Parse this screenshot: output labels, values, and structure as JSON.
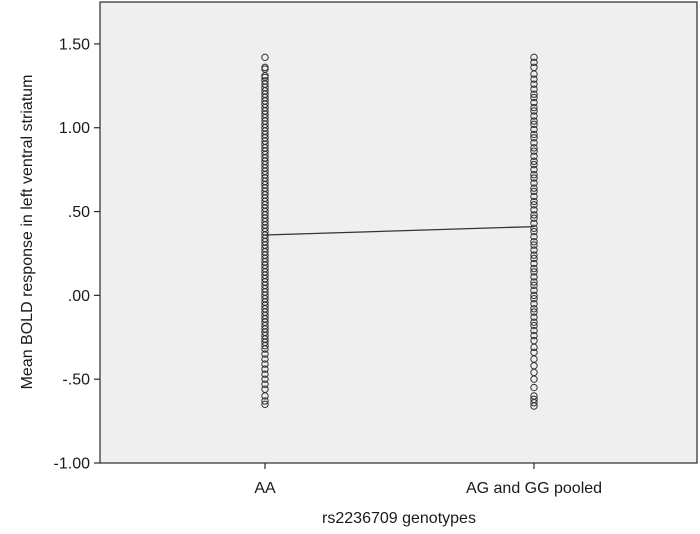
{
  "chart_data": {
    "type": "scatter",
    "title": "",
    "xlabel": "rs2236709 genotypes",
    "ylabel": "Mean BOLD response in left ventral striatum",
    "categories": [
      "AA",
      "AG and GG pooled"
    ],
    "ylim": [
      -1.0,
      1.75
    ],
    "yticks": [
      {
        "value": 1.5,
        "label": "1.50"
      },
      {
        "value": 1.0,
        "label": "1.00"
      },
      {
        "value": 0.5,
        "label": ".50"
      },
      {
        "value": 0.0,
        "label": ".00"
      },
      {
        "value": -0.5,
        "label": "-.50"
      },
      {
        "value": -1.0,
        "label": "-1.00"
      }
    ],
    "grid": false,
    "plot_background": "#efefef",
    "point_color": "#333333",
    "line_color": "#333333",
    "series": [
      {
        "category": "AA",
        "values": [
          1.42,
          1.36,
          1.35,
          1.31,
          1.3,
          1.28,
          1.26,
          1.24,
          1.22,
          1.2,
          1.18,
          1.16,
          1.14,
          1.12,
          1.1,
          1.08,
          1.06,
          1.04,
          1.02,
          1.0,
          0.98,
          0.96,
          0.94,
          0.92,
          0.9,
          0.88,
          0.86,
          0.84,
          0.82,
          0.8,
          0.78,
          0.76,
          0.74,
          0.72,
          0.7,
          0.68,
          0.66,
          0.64,
          0.62,
          0.6,
          0.58,
          0.56,
          0.54,
          0.52,
          0.5,
          0.48,
          0.46,
          0.44,
          0.42,
          0.4,
          0.38,
          0.36,
          0.34,
          0.32,
          0.3,
          0.28,
          0.26,
          0.24,
          0.22,
          0.2,
          0.18,
          0.16,
          0.14,
          0.12,
          0.1,
          0.08,
          0.06,
          0.04,
          0.02,
          0.0,
          -0.02,
          -0.04,
          -0.06,
          -0.08,
          -0.1,
          -0.12,
          -0.14,
          -0.16,
          -0.18,
          -0.2,
          -0.22,
          -0.24,
          -0.26,
          -0.28,
          -0.3,
          -0.32,
          -0.35,
          -0.38,
          -0.41,
          -0.44,
          -0.47,
          -0.5,
          -0.53,
          -0.56,
          -0.6,
          -0.63,
          -0.65
        ]
      },
      {
        "category": "AG and GG pooled",
        "values": [
          1.42,
          1.39,
          1.36,
          1.32,
          1.29,
          1.26,
          1.23,
          1.2,
          1.18,
          1.15,
          1.12,
          1.1,
          1.07,
          1.04,
          1.02,
          0.99,
          0.96,
          0.94,
          0.91,
          0.88,
          0.86,
          0.83,
          0.8,
          0.78,
          0.75,
          0.72,
          0.7,
          0.67,
          0.64,
          0.62,
          0.59,
          0.56,
          0.54,
          0.51,
          0.48,
          0.46,
          0.43,
          0.4,
          0.38,
          0.35,
          0.32,
          0.3,
          0.27,
          0.24,
          0.22,
          0.19,
          0.16,
          0.14,
          0.11,
          0.08,
          0.06,
          0.03,
          0.0,
          -0.02,
          -0.05,
          -0.08,
          -0.1,
          -0.13,
          -0.16,
          -0.18,
          -0.21,
          -0.24,
          -0.27,
          -0.31,
          -0.34,
          -0.38,
          -0.42,
          -0.46,
          -0.5,
          -0.55,
          -0.6,
          -0.62,
          -0.64,
          -0.66
        ]
      }
    ],
    "mean_line": {
      "values": [
        0.36,
        0.41
      ]
    }
  }
}
